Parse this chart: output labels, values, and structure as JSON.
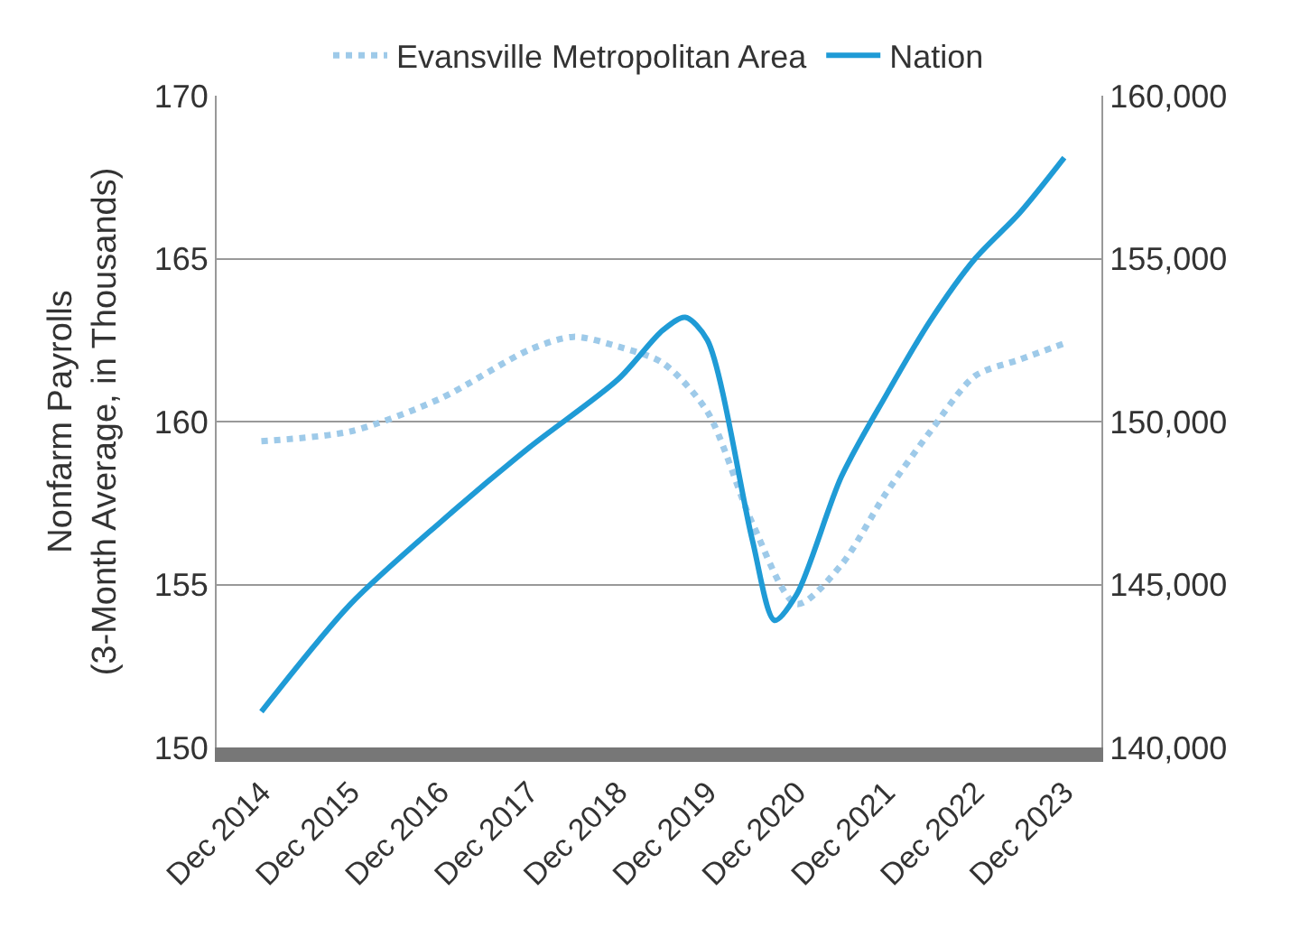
{
  "chart_data": {
    "type": "line",
    "ylabel": "Nonfarm Payrolls\n(3-Month Average, in Thousands)",
    "xlim": [
      "2014-06",
      "2024-05"
    ],
    "xticks": [
      {
        "value": "2014-12",
        "label": "Dec 2014"
      },
      {
        "value": "2015-12",
        "label": "Dec 2015"
      },
      {
        "value": "2016-12",
        "label": "Dec 2016"
      },
      {
        "value": "2017-12",
        "label": "Dec 2017"
      },
      {
        "value": "2018-12",
        "label": "Dec 2018"
      },
      {
        "value": "2019-12",
        "label": "Dec 2019"
      },
      {
        "value": "2020-12",
        "label": "Dec 2020"
      },
      {
        "value": "2021-12",
        "label": "Dec 2021"
      },
      {
        "value": "2022-12",
        "label": "Dec 2022"
      },
      {
        "value": "2023-12",
        "label": "Dec 2023"
      }
    ],
    "ylim": [
      150,
      170
    ],
    "yticks": [
      150,
      155,
      160,
      165,
      170
    ],
    "y2lim": [
      140000,
      160000
    ],
    "y2ticks": [
      {
        "value": 140000,
        "label": "140,000"
      },
      {
        "value": 145000,
        "label": "145,000"
      },
      {
        "value": 150000,
        "label": "150,000"
      },
      {
        "value": 155000,
        "label": "155,000"
      },
      {
        "value": 160000,
        "label": "160,000"
      }
    ],
    "grid": "y",
    "legend": "top",
    "marker": "none",
    "series": [
      {
        "name": "Evansville Metropolitan Area",
        "color": "#9ecae9",
        "line_style": "dotted",
        "x": [
          "2014-12",
          "2015-12",
          "2016-12",
          "2017-12",
          "2018-06",
          "2018-12",
          "2019-06",
          "2019-12",
          "2020-06",
          "2020-12",
          "2021-06",
          "2021-12",
          "2022-06",
          "2022-12",
          "2023-06",
          "2023-12"
        ],
        "values": [
          159.4,
          159.7,
          160.7,
          162.2,
          162.6,
          162.3,
          161.8,
          160.3,
          156.9,
          154.4,
          155.6,
          157.8,
          159.7,
          161.4,
          161.9,
          162.4
        ]
      },
      {
        "name": "Nation",
        "color": "#1f9bd6",
        "line_style": "solid",
        "axis": "y2",
        "x": [
          "2014-12",
          "2015-12",
          "2016-12",
          "2017-12",
          "2018-12",
          "2019-06",
          "2019-09",
          "2019-12",
          "2020-06",
          "2020-09",
          "2020-12",
          "2021-06",
          "2021-12",
          "2022-06",
          "2022-12",
          "2023-06",
          "2023-12"
        ],
        "values": [
          141100,
          144400,
          146900,
          149200,
          151300,
          152800,
          153200,
          152500,
          146400,
          143900,
          144700,
          148300,
          150800,
          153100,
          155000,
          156400,
          158100
        ]
      }
    ]
  }
}
